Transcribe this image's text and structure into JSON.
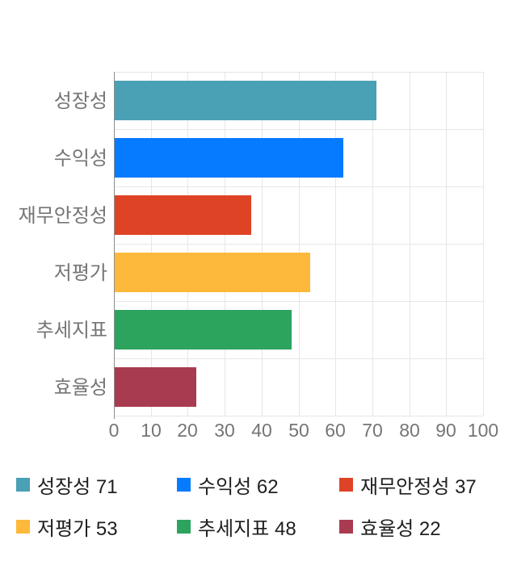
{
  "chart_data": {
    "type": "bar",
    "orientation": "horizontal",
    "title": "",
    "categories": [
      "성장성",
      "수익성",
      "재무안정성",
      "저평가",
      "추세지표",
      "효율성"
    ],
    "values": [
      71,
      62,
      37,
      53,
      48,
      22
    ],
    "colors": [
      "#4AA0B5",
      "#077BFF",
      "#DF4326",
      "#FDB93B",
      "#2CA45D",
      "#A93B50"
    ],
    "xlabel": "",
    "ylabel": "",
    "xlim": [
      0,
      100
    ],
    "xticks": [
      "0",
      "10",
      "20",
      "30",
      "40",
      "50",
      "60",
      "70",
      "80",
      "90",
      "100"
    ],
    "grid": true,
    "legend_position": "bottom",
    "legend": [
      {
        "text": "성장성 71",
        "color": "#4AA0B5"
      },
      {
        "text": "수익성 62",
        "color": "#077BFF"
      },
      {
        "text": "재무안정성 37",
        "color": "#DF4326"
      },
      {
        "text": "저평가 53",
        "color": "#FDB93B"
      },
      {
        "text": "추세지표 48",
        "color": "#2CA45D"
      },
      {
        "text": "효율성 22",
        "color": "#A93B50"
      }
    ]
  },
  "style_colors": {
    "background": "#FFFFFF",
    "grid_line": "#E6E6E6",
    "axis_line": "#8C8C8C",
    "tick_label": "#757575",
    "category_label": "#757575",
    "legend_text": "#1F1F1F"
  }
}
